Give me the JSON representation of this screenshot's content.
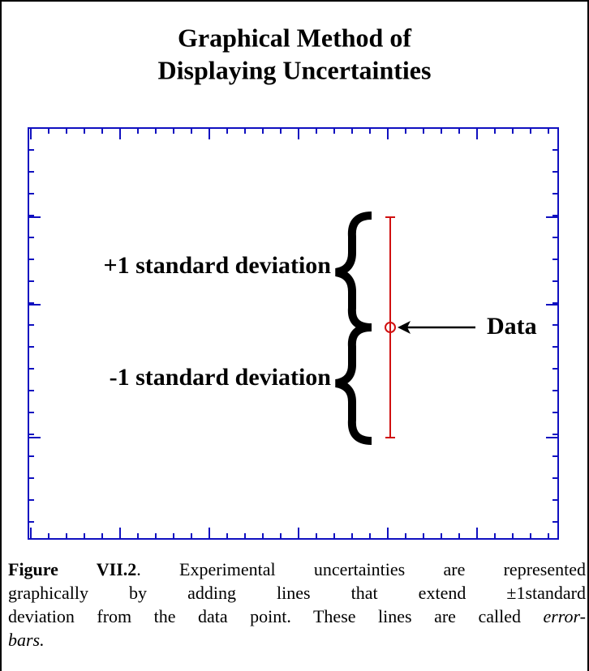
{
  "title": {
    "line1": "Graphical Method of",
    "line2": "Displaying Uncertainties"
  },
  "labels": {
    "plus": "+1 standard deviation",
    "minus": "-1 standard deviation",
    "data": "Data"
  },
  "caption": {
    "label": "Figure VII.2",
    "line1": ". Experimental uncertainties are represented",
    "line2": "graphically by adding lines that extend  ±1standard",
    "line3": "deviation from the data point. These lines are called",
    "term1": "error-",
    "term2": "bars."
  }
}
